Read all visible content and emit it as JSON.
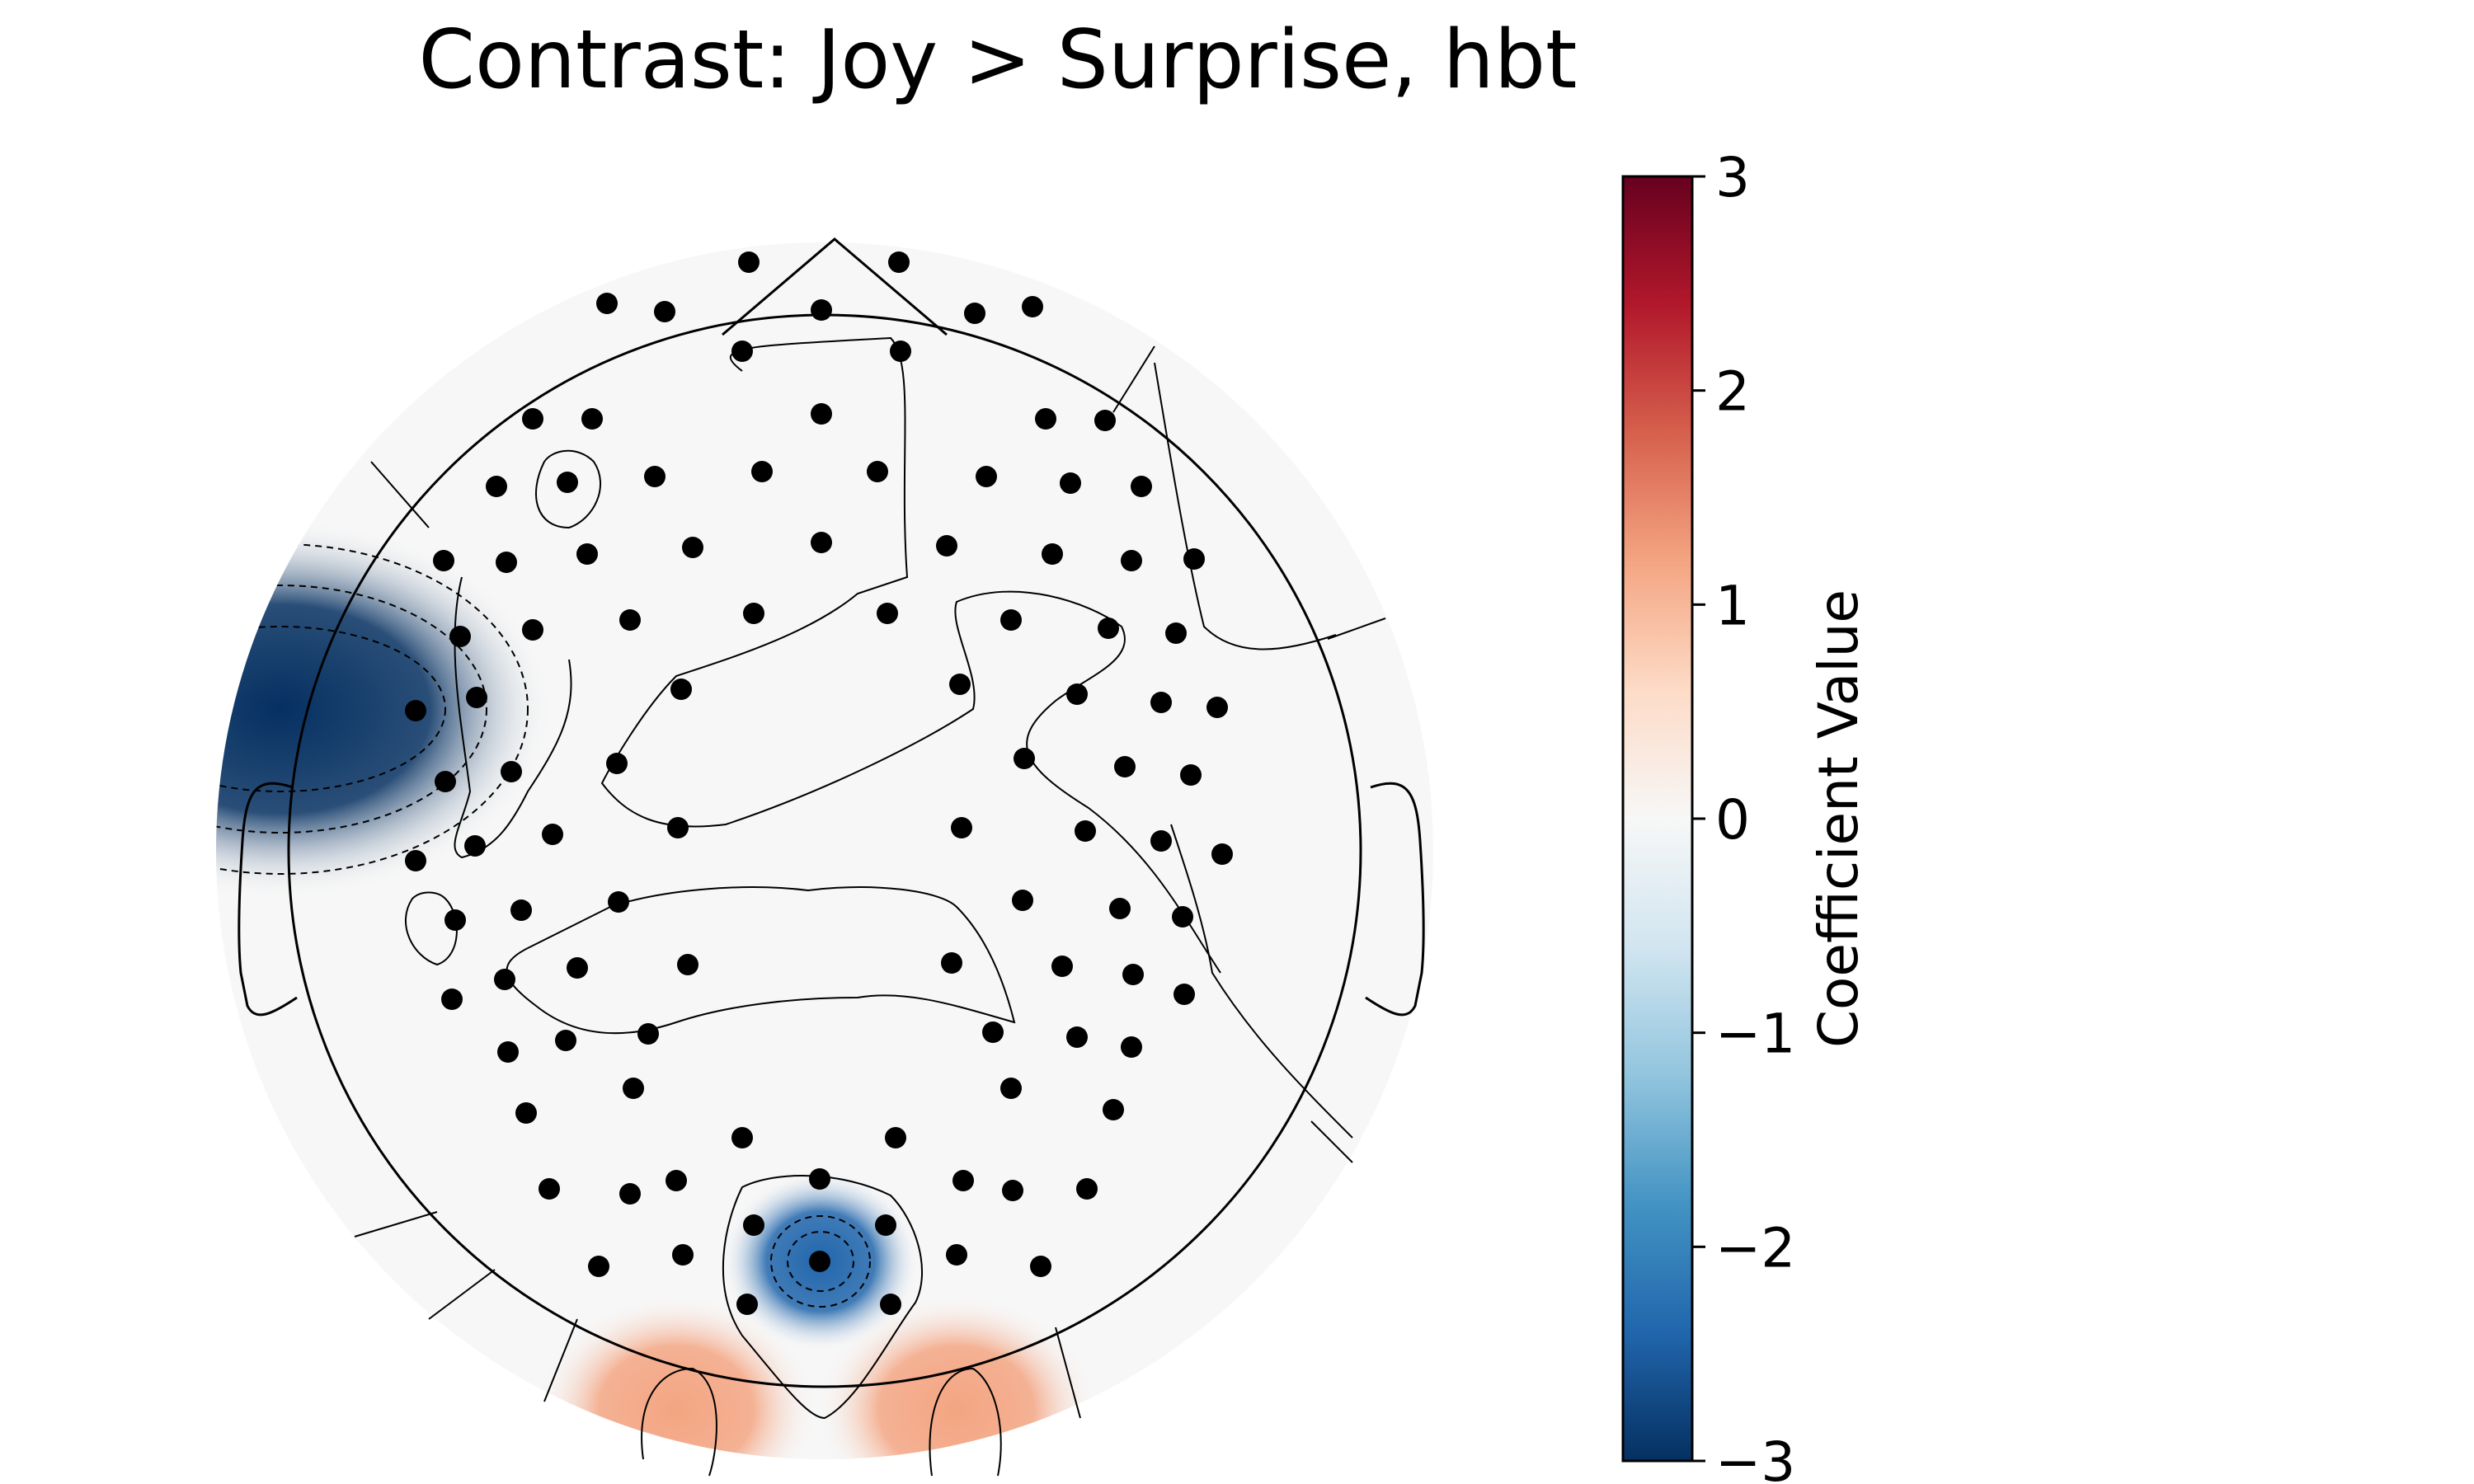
{
  "title": "Contrast: Joy > Surprise, hbt",
  "chart_data": {
    "type": "heatmap",
    "title": "Contrast: Joy > Surprise, hbt",
    "colorbar": {
      "label": "Coefficient Value",
      "range": [
        -3,
        3
      ],
      "ticks": [
        3,
        2,
        1,
        0,
        -1,
        -2,
        -3
      ],
      "tick_labels": [
        "3",
        "2",
        "1",
        "0",
        "−1",
        "−2",
        "−3"
      ],
      "colormap": "RdBu_r",
      "color_stops": [
        "#053061",
        "#2166ac",
        "#4393c3",
        "#92c5de",
        "#d1e5f0",
        "#f7f7f7",
        "#fddbc7",
        "#f4a582",
        "#d6604d",
        "#b2182b",
        "#67001f"
      ]
    },
    "regions": [
      {
        "location": "left-temporal",
        "value": -3.2
      },
      {
        "location": "occipital-midline",
        "value": -2.4
      },
      {
        "location": "occipital-left",
        "value": 1.2
      },
      {
        "location": "occipital-right",
        "value": 1.1
      },
      {
        "location": "frontal-midline",
        "value": 0.1
      }
    ],
    "sensor_markers": "black dots",
    "contour_lines": "solid positive, dashed negative",
    "head_outline": true,
    "legend": "colorbar-right"
  }
}
